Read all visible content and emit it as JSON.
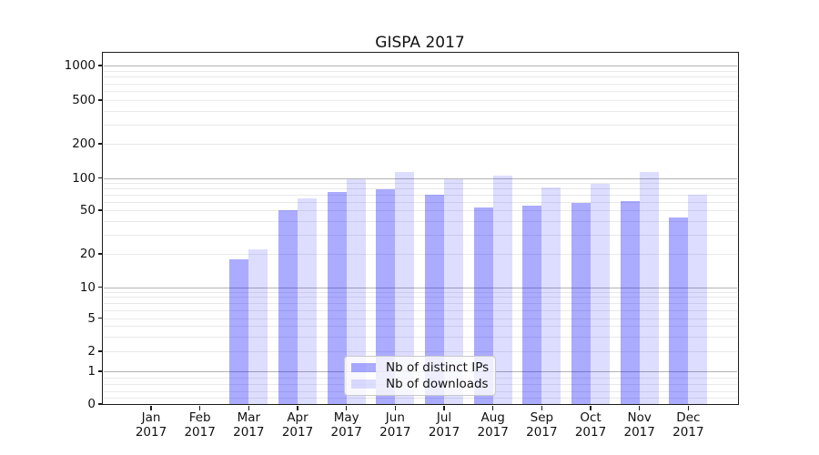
{
  "title": "GISPA 2017",
  "chart_data": {
    "type": "bar",
    "title": "GISPA 2017",
    "categories": [
      "Jan",
      "Feb",
      "Mar",
      "Apr",
      "May",
      "Jun",
      "Jul",
      "Aug",
      "Sep",
      "Oct",
      "Nov",
      "Dec"
    ],
    "category_year": "2017",
    "series": [
      {
        "name": "Nb of distinct IPs",
        "color": "rgba(0,0,255,0.33)",
        "values": [
          0,
          0,
          18,
          50,
          74,
          79,
          70,
          53,
          55,
          59,
          61,
          43
        ]
      },
      {
        "name": "Nb of downloads",
        "color": "rgba(0,0,255,0.135)",
        "values": [
          0,
          0,
          22,
          65,
          98,
          112,
          98,
          104,
          81,
          88,
          112,
          70
        ]
      }
    ],
    "yscale": "symlog",
    "y_ticks": [
      0,
      1,
      2,
      5,
      10,
      20,
      50,
      100,
      200,
      500,
      1000
    ],
    "ylim": [
      0,
      1270
    ],
    "xlabel": "",
    "ylabel": "",
    "grid": true,
    "legend": {
      "position": "lower center",
      "entries": [
        "Nb of distinct IPs",
        "Nb of downloads"
      ]
    },
    "colors": {
      "bar_distinct_ips": "rgba(0,0,255,0.33)",
      "bar_downloads": "rgba(0,0,255,0.135)",
      "grid_major": "#b3b3b3",
      "grid_minor": "#e9e9e9",
      "axis": "#1c1c1c",
      "background": "#ffffff"
    }
  }
}
